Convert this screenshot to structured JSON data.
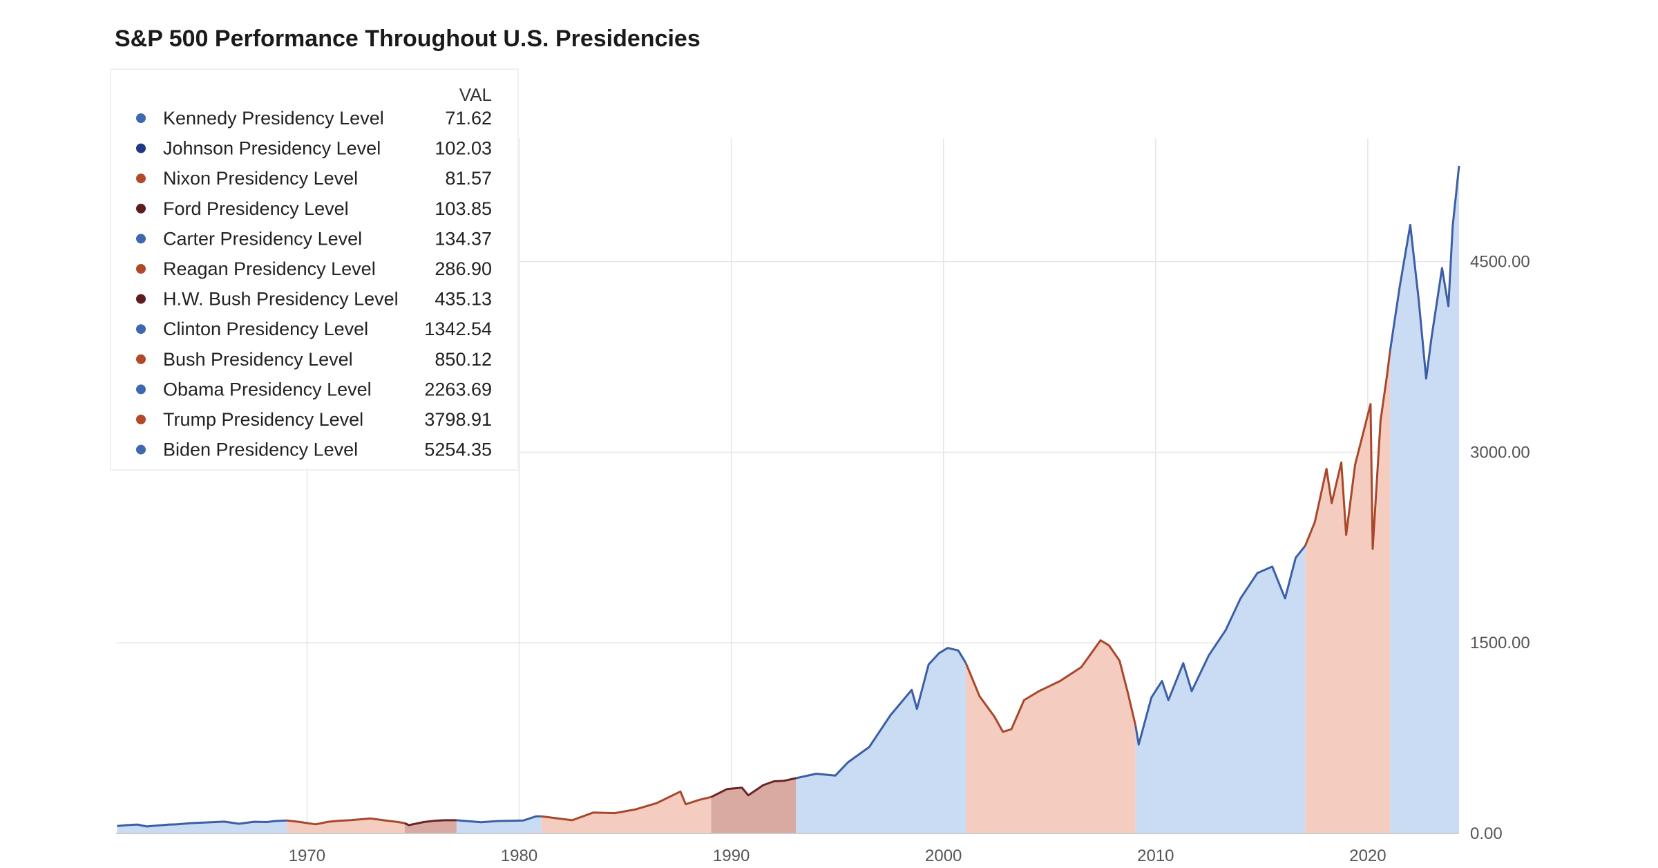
{
  "chart_data": {
    "type": "area",
    "title": "S&P 500 Performance Throughout U.S. Presidencies",
    "xlabel": "",
    "ylabel": "",
    "xlim": [
      1961,
      2024.3
    ],
    "ylim": [
      0,
      5254.35
    ],
    "x_ticks": [
      1970,
      1980,
      1990,
      2000,
      2010,
      2020
    ],
    "y_ticks": [
      0,
      1500,
      3000,
      4500
    ],
    "x_tick_labels": [
      "1970",
      "1980",
      "1990",
      "2000",
      "2010",
      "2020"
    ],
    "y_tick_labels": [
      "0.00",
      "1500.00",
      "3000.00",
      "4500.00"
    ],
    "y_axis_position": "right",
    "grid": true,
    "legend": {
      "placement": "top-left",
      "column_header": "VAL"
    },
    "party_colors": {
      "D": {
        "line": "#3b5ea6",
        "fill": "#c9dcf3"
      },
      "R": {
        "line": "#a8472b",
        "fill": "#f4cdc0"
      },
      "R2": {
        "line": "#6b2424",
        "fill": "#d8aaa2"
      }
    },
    "series": [
      {
        "name": "Kennedy Presidency Level",
        "value": "71.62",
        "party": "D",
        "color": "#4068b0",
        "start": 1961.05,
        "end": 1963.9,
        "points": [
          [
            1961.05,
            58
          ],
          [
            1961.5,
            65
          ],
          [
            1962.0,
            70
          ],
          [
            1962.45,
            55
          ],
          [
            1962.9,
            62
          ],
          [
            1963.5,
            70
          ],
          [
            1963.9,
            71.62
          ]
        ]
      },
      {
        "name": "Johnson Presidency Level",
        "value": "102.03",
        "party": "D",
        "color": "#1f3a80",
        "start": 1963.9,
        "end": 1969.05,
        "points": [
          [
            1963.9,
            71.62
          ],
          [
            1964.5,
            81
          ],
          [
            1965.5,
            88
          ],
          [
            1966.1,
            93
          ],
          [
            1966.8,
            76
          ],
          [
            1967.5,
            92
          ],
          [
            1968.1,
            90
          ],
          [
            1968.5,
            98
          ],
          [
            1969.05,
            102.03
          ]
        ]
      },
      {
        "name": "Nixon Presidency Level",
        "value": "81.57",
        "party": "R",
        "color": "#b04a28",
        "start": 1969.05,
        "end": 1974.6,
        "points": [
          [
            1969.05,
            102.03
          ],
          [
            1969.6,
            92
          ],
          [
            1970.4,
            72
          ],
          [
            1971.0,
            92
          ],
          [
            1971.5,
            100
          ],
          [
            1972.0,
            104
          ],
          [
            1973.0,
            118
          ],
          [
            1973.6,
            104
          ],
          [
            1974.2,
            92
          ],
          [
            1974.6,
            81.57
          ]
        ]
      },
      {
        "name": "Ford Presidency Level",
        "value": "103.85",
        "party": "R2",
        "color": "#5a1e1e",
        "start": 1974.6,
        "end": 1977.05,
        "points": [
          [
            1974.6,
            81.57
          ],
          [
            1974.8,
            65
          ],
          [
            1975.5,
            90
          ],
          [
            1976.0,
            100
          ],
          [
            1976.5,
            104
          ],
          [
            1977.05,
            103.85
          ]
        ]
      },
      {
        "name": "Carter Presidency Level",
        "value": "134.37",
        "party": "D",
        "color": "#4068b0",
        "start": 1977.05,
        "end": 1981.05,
        "points": [
          [
            1977.05,
            103.85
          ],
          [
            1978.2,
            88
          ],
          [
            1979.0,
            98
          ],
          [
            1980.2,
            102
          ],
          [
            1980.8,
            135
          ],
          [
            1981.05,
            134.37
          ]
        ]
      },
      {
        "name": "Reagan Presidency Level",
        "value": "286.90",
        "party": "R",
        "color": "#b04a28",
        "start": 1981.05,
        "end": 1989.05,
        "points": [
          [
            1981.05,
            134.37
          ],
          [
            1982.5,
            104
          ],
          [
            1983.5,
            165
          ],
          [
            1984.5,
            160
          ],
          [
            1985.5,
            190
          ],
          [
            1986.5,
            240
          ],
          [
            1987.6,
            330
          ],
          [
            1987.85,
            230
          ],
          [
            1988.5,
            265
          ],
          [
            1989.05,
            286.9
          ]
        ]
      },
      {
        "name": "H.W. Bush Presidency Level",
        "value": "435.13",
        "party": "R2",
        "color": "#5a1e1e",
        "start": 1989.05,
        "end": 1993.05,
        "points": [
          [
            1989.05,
            286.9
          ],
          [
            1989.8,
            350
          ],
          [
            1990.5,
            360
          ],
          [
            1990.8,
            300
          ],
          [
            1991.5,
            380
          ],
          [
            1992.0,
            410
          ],
          [
            1992.5,
            415
          ],
          [
            1993.05,
            435.13
          ]
        ]
      },
      {
        "name": "Clinton Presidency Level",
        "value": "1342.54",
        "party": "D",
        "color": "#4068b0",
        "start": 1993.05,
        "end": 2001.05,
        "points": [
          [
            1993.05,
            435.13
          ],
          [
            1994.0,
            470
          ],
          [
            1994.9,
            455
          ],
          [
            1995.5,
            560
          ],
          [
            1996.5,
            680
          ],
          [
            1997.5,
            930
          ],
          [
            1998.5,
            1130
          ],
          [
            1998.75,
            980
          ],
          [
            1999.3,
            1330
          ],
          [
            1999.8,
            1420
          ],
          [
            2000.2,
            1460
          ],
          [
            2000.7,
            1440
          ],
          [
            2001.05,
            1342.54
          ]
        ]
      },
      {
        "name": "Bush Presidency Level",
        "value": "850.12",
        "party": "R",
        "color": "#b04a28",
        "start": 2001.05,
        "end": 2009.05,
        "points": [
          [
            2001.05,
            1342.54
          ],
          [
            2001.7,
            1080
          ],
          [
            2002.4,
            920
          ],
          [
            2002.8,
            800
          ],
          [
            2003.2,
            820
          ],
          [
            2003.8,
            1050
          ],
          [
            2004.5,
            1120
          ],
          [
            2005.5,
            1200
          ],
          [
            2006.5,
            1310
          ],
          [
            2007.4,
            1520
          ],
          [
            2007.8,
            1480
          ],
          [
            2008.3,
            1360
          ],
          [
            2008.7,
            1100
          ],
          [
            2009.05,
            850.12
          ]
        ]
      },
      {
        "name": "Obama Presidency Level",
        "value": "2263.69",
        "party": "D",
        "color": "#4068b0",
        "start": 2009.05,
        "end": 2017.05,
        "points": [
          [
            2009.05,
            850.12
          ],
          [
            2009.2,
            700
          ],
          [
            2009.8,
            1070
          ],
          [
            2010.3,
            1200
          ],
          [
            2010.6,
            1050
          ],
          [
            2011.3,
            1340
          ],
          [
            2011.7,
            1120
          ],
          [
            2012.5,
            1400
          ],
          [
            2013.3,
            1600
          ],
          [
            2014.0,
            1850
          ],
          [
            2014.8,
            2050
          ],
          [
            2015.5,
            2100
          ],
          [
            2016.1,
            1850
          ],
          [
            2016.6,
            2170
          ],
          [
            2017.05,
            2263.69
          ]
        ]
      },
      {
        "name": "Trump Presidency Level",
        "value": "3798.91",
        "party": "R",
        "color": "#b04a28",
        "start": 2017.05,
        "end": 2021.05,
        "points": [
          [
            2017.05,
            2263.69
          ],
          [
            2017.5,
            2450
          ],
          [
            2018.05,
            2870
          ],
          [
            2018.3,
            2600
          ],
          [
            2018.75,
            2920
          ],
          [
            2018.98,
            2350
          ],
          [
            2019.4,
            2900
          ],
          [
            2019.9,
            3230
          ],
          [
            2020.13,
            3380
          ],
          [
            2020.23,
            2240
          ],
          [
            2020.6,
            3250
          ],
          [
            2020.9,
            3600
          ],
          [
            2021.05,
            3798.91
          ]
        ]
      },
      {
        "name": "Biden Presidency Level",
        "value": "5254.35",
        "party": "D",
        "color": "#4068b0",
        "start": 2021.05,
        "end": 2024.3,
        "points": [
          [
            2021.05,
            3798.91
          ],
          [
            2021.5,
            4300
          ],
          [
            2022.0,
            4790
          ],
          [
            2022.4,
            4200
          ],
          [
            2022.75,
            3580
          ],
          [
            2023.0,
            3900
          ],
          [
            2023.5,
            4450
          ],
          [
            2023.8,
            4150
          ],
          [
            2024.0,
            4780
          ],
          [
            2024.3,
            5254.35
          ]
        ]
      }
    ]
  }
}
